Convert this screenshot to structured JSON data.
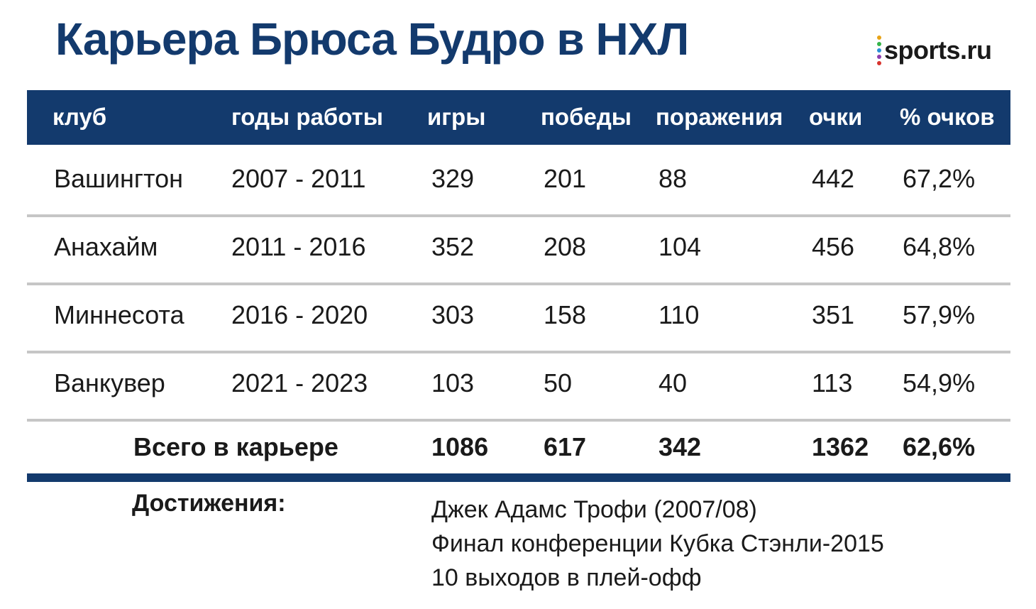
{
  "title": "Карьера Брюса Будро в НХЛ",
  "logo": {
    "text": "sports.ru",
    "dot_colors": [
      "#e8a317",
      "#35b44a",
      "#2a8fd6",
      "#8e3fb0",
      "#d8342e"
    ]
  },
  "colors": {
    "header_bg": "#133a6d",
    "title": "#133a6d",
    "divider": "#c6c6c6"
  },
  "chart_data": {
    "type": "table",
    "columns": [
      "клуб",
      "годы работы",
      "игры",
      "победы",
      "поражения",
      "очки",
      "% очков"
    ],
    "rows": [
      [
        "Вашингтон",
        "2007 - 2011",
        "329",
        "201",
        "88",
        "442",
        "67,2%"
      ],
      [
        "Анахайм",
        "2011 - 2016",
        "352",
        "208",
        "104",
        "456",
        "64,8%"
      ],
      [
        "Миннесота",
        "2016 - 2020",
        "303",
        "158",
        "110",
        "351",
        "57,9%"
      ],
      [
        "Ванкувер",
        "2021 - 2023",
        "103",
        "50",
        "40",
        "113",
        "54,9%"
      ]
    ],
    "total": {
      "label": "Всего в карьере",
      "values": [
        "1086",
        "617",
        "342",
        "1362",
        "62,6%"
      ]
    }
  },
  "achievements": {
    "label": "Достижения:",
    "items": [
      "Джек Адамс Трофи (2007/08)",
      "Финал конференции Кубка Стэнли-2015",
      "10 выходов в плей-офф"
    ]
  }
}
